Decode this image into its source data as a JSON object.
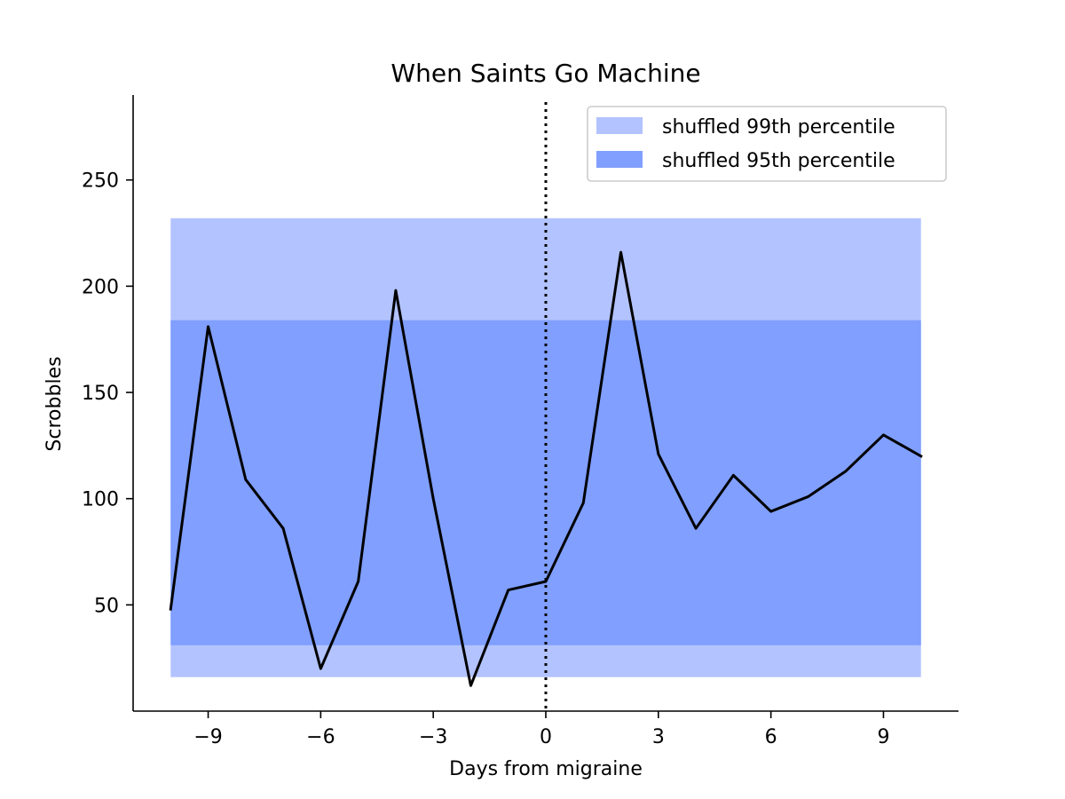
{
  "chart_data": {
    "type": "line",
    "title": "When Saints Go Machine",
    "xlabel": "Days from migraine",
    "ylabel": "Scrobbles",
    "xlim": [
      -11,
      11
    ],
    "ylim": [
      0,
      290
    ],
    "x_ticks": [
      -9,
      -6,
      -3,
      0,
      3,
      6,
      9
    ],
    "x_tick_labels": [
      "−9",
      "−6",
      "−3",
      "0",
      "3",
      "6",
      "9"
    ],
    "y_ticks": [
      50,
      100,
      150,
      200,
      250
    ],
    "y_tick_labels": [
      "50",
      "100",
      "150",
      "200",
      "250"
    ],
    "vline_x": 0,
    "series": [
      {
        "name": "scrobbles",
        "color": "#000000",
        "x": [
          -10,
          -9,
          -8,
          -7,
          -6,
          -5,
          -4,
          -3,
          -2,
          -1,
          0,
          1,
          2,
          3,
          4,
          5,
          6,
          7,
          8,
          9,
          10
        ],
        "values": [
          48,
          181,
          109,
          86,
          20,
          61,
          198,
          100,
          12,
          57,
          61,
          98,
          216,
          121,
          86,
          111,
          94,
          101,
          113,
          130,
          120
        ]
      }
    ],
    "bands": [
      {
        "name": "shuffled 99th percentile",
        "x_range": [
          -10,
          10
        ],
        "low": 16,
        "high": 232,
        "color": "#b3c3ff"
      },
      {
        "name": "shuffled 95th percentile",
        "x_range": [
          -10,
          10
        ],
        "low": 31,
        "high": 184,
        "color": "#809ffe"
      }
    ],
    "legend": {
      "position": "top-right",
      "entries": [
        "shuffled 99th percentile",
        "shuffled 95th percentile"
      ]
    }
  }
}
